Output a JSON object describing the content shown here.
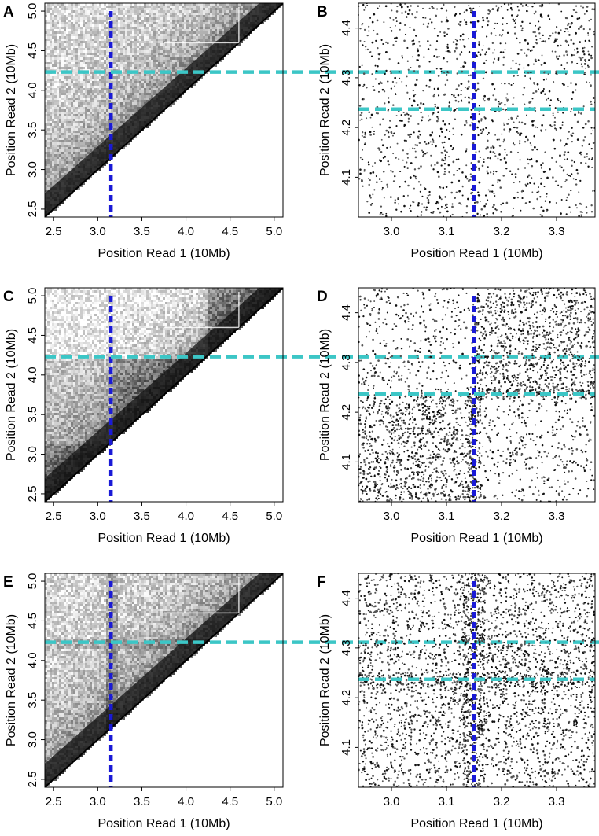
{
  "colors": {
    "dark_blue": "#1a1ad6",
    "cyan": "#3cc6c6",
    "ink": "#000000"
  },
  "chart_data": [
    {
      "panel": "A",
      "type": "heatmap",
      "variant": "triangle",
      "pattern": "uniform",
      "xlabel": "Position Read 1 (10Mb)",
      "ylabel": "Position Read 2 (10Mb)",
      "xlim": [
        2.4,
        5.1
      ],
      "ylim": [
        2.4,
        5.1
      ],
      "xticks": [
        "2.5",
        "3.0",
        "3.5",
        "4.0",
        "4.5",
        "5.0"
      ],
      "yticks": [
        "2.5",
        "3.0",
        "3.5",
        "4.0",
        "4.5",
        "5.0"
      ],
      "vline": 3.15,
      "hline": 4.23
    },
    {
      "panel": "B",
      "type": "scatter",
      "pattern": "uniform",
      "xlabel": "Position Read 1 (10Mb)",
      "ylabel": "Position Read 2 (10Mb)",
      "xlim": [
        2.94,
        3.37
      ],
      "ylim": [
        4.02,
        4.45
      ],
      "xticks": [
        "3.0",
        "3.1",
        "3.2",
        "3.3"
      ],
      "yticks": [
        "4.1",
        "4.2",
        "4.3",
        "4.4"
      ],
      "vline": 3.15,
      "hline": 4.237
    },
    {
      "panel": "C",
      "type": "heatmap",
      "variant": "triangle",
      "pattern": "blocks",
      "xlabel": "Position Read 1 (10Mb)",
      "ylabel": "Position Read 2 (10Mb)",
      "xlim": [
        2.4,
        5.1
      ],
      "ylim": [
        2.4,
        5.1
      ],
      "xticks": [
        "2.5",
        "3.0",
        "3.5",
        "4.0",
        "4.5",
        "5.0"
      ],
      "yticks": [
        "2.5",
        "3.0",
        "3.5",
        "4.0",
        "4.5",
        "5.0"
      ],
      "vline": 3.15,
      "hline": 4.23
    },
    {
      "panel": "D",
      "type": "scatter",
      "pattern": "blocks",
      "xlabel": "Position Read 1 (10Mb)",
      "ylabel": "Position Read 2 (10Mb)",
      "xlim": [
        2.94,
        3.37
      ],
      "ylim": [
        4.02,
        4.45
      ],
      "xticks": [
        "3.0",
        "3.1",
        "3.2",
        "3.3"
      ],
      "yticks": [
        "4.1",
        "4.2",
        "4.3",
        "4.4"
      ],
      "vline": 3.15,
      "hline": 4.237
    },
    {
      "panel": "E",
      "type": "heatmap",
      "variant": "triangle",
      "pattern": "cross",
      "xlabel": "Position Read 1 (10Mb)",
      "ylabel": "Position Read 2 (10Mb)",
      "xlim": [
        2.4,
        5.1
      ],
      "ylim": [
        2.4,
        5.1
      ],
      "xticks": [
        "2.5",
        "3.0",
        "3.5",
        "4.0",
        "4.5",
        "5.0"
      ],
      "yticks": [
        "2.5",
        "3.0",
        "3.5",
        "4.0",
        "4.5",
        "5.0"
      ],
      "vline": 3.15,
      "hline": 4.23
    },
    {
      "panel": "F",
      "type": "scatter",
      "pattern": "cross",
      "xlabel": "Position Read 1 (10Mb)",
      "ylabel": "Position Read 2 (10Mb)",
      "xlim": [
        2.94,
        3.37
      ],
      "ylim": [
        4.02,
        4.45
      ],
      "xticks": [
        "3.0",
        "3.1",
        "3.2",
        "3.3"
      ],
      "yticks": [
        "4.1",
        "4.2",
        "4.3",
        "4.4"
      ],
      "vline": 3.15,
      "hline": 4.237
    }
  ]
}
